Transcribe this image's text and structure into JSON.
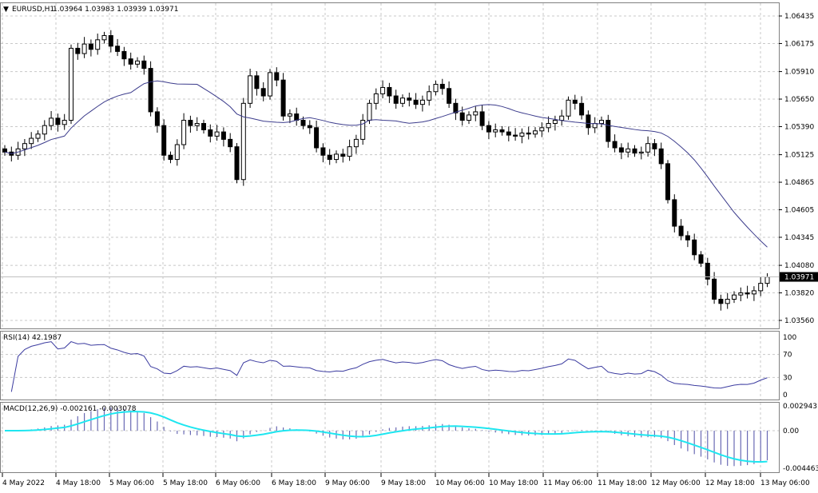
{
  "header": {
    "symbol": "EURUSD,H1",
    "ohlc": "1.03964 1.03983 1.03939 1.03971"
  },
  "chart_data": [
    {
      "type": "candlestick",
      "title": "EURUSD,H1",
      "price_ticks": [
        "1.06435",
        "1.06175",
        "1.05910",
        "1.05650",
        "1.05390",
        "1.05125",
        "1.04865",
        "1.04605",
        "1.04345",
        "1.04080",
        "1.03820",
        "1.03560"
      ],
      "ylim": [
        1.0356,
        1.06435
      ],
      "current_price": "1.03971",
      "time_ticks": [
        "4 May 2022",
        "4 May 18:00",
        "5 May 06:00",
        "5 May 18:00",
        "6 May 06:00",
        "6 May 18:00",
        "9 May 06:00",
        "9 May 18:00",
        "10 May 06:00",
        "10 May 18:00",
        "11 May 06:00",
        "11 May 18:00",
        "12 May 06:00",
        "12 May 18:00",
        "13 May 06:00"
      ],
      "grid": true,
      "moving_average_color": "#3c3c8c",
      "close": [
        1.0515,
        1.0512,
        1.0518,
        1.0523,
        1.0528,
        1.0532,
        1.054,
        1.0547,
        1.0541,
        1.0545,
        1.0613,
        1.0608,
        1.0617,
        1.0612,
        1.0621,
        1.0625,
        1.0615,
        1.061,
        1.0603,
        1.0598,
        1.0601,
        1.0594,
        1.0553,
        1.054,
        1.0512,
        1.0508,
        1.0522,
        1.0545,
        1.054,
        1.0542,
        1.0536,
        1.053,
        1.0534,
        1.0527,
        1.052,
        1.0489,
        1.0561,
        1.0587,
        1.0575,
        1.0568,
        1.059,
        1.0583,
        1.0549,
        1.0551,
        1.0545,
        1.054,
        1.0538,
        1.0519,
        1.0512,
        1.0508,
        1.0513,
        1.0511,
        1.052,
        1.0527,
        1.0545,
        1.0561,
        1.057,
        1.0576,
        1.0568,
        1.0561,
        1.0566,
        1.0564,
        1.056,
        1.0564,
        1.0572,
        1.0579,
        1.0575,
        1.0561,
        1.0552,
        1.0545,
        1.055,
        1.0553,
        1.054,
        1.0534,
        1.0536,
        1.0534,
        1.0531,
        1.053,
        1.0533,
        1.0532,
        1.0535,
        1.0538,
        1.0542,
        1.0545,
        1.0549,
        1.0564,
        1.0561,
        1.055,
        1.0538,
        1.0542,
        1.0545,
        1.0525,
        1.0519,
        1.0515,
        1.0518,
        1.0514,
        1.0515,
        1.0523,
        1.0518,
        1.0504,
        1.047,
        1.0445,
        1.0436,
        1.0432,
        1.0418,
        1.041,
        1.0395,
        1.0376,
        1.0372,
        1.0376,
        1.038,
        1.0382,
        1.0381,
        1.0384,
        1.0391,
        1.0397
      ]
    },
    {
      "type": "line",
      "label": "RSI(14) 42.1987",
      "ticks": [
        "100",
        "70",
        "30",
        "0"
      ],
      "ylim": [
        0,
        100
      ],
      "color": "#3c3ca0"
    },
    {
      "type": "bar+line",
      "label": "MACD(12,26,9) -0.002161 -0.003078",
      "ticks": [
        "0.002943",
        "0.00",
        "-0.004463"
      ],
      "ylim": [
        -0.004463,
        0.002943
      ],
      "histogram_color": "#6a6ab4",
      "signal_color": "#1ee6f0"
    }
  ]
}
